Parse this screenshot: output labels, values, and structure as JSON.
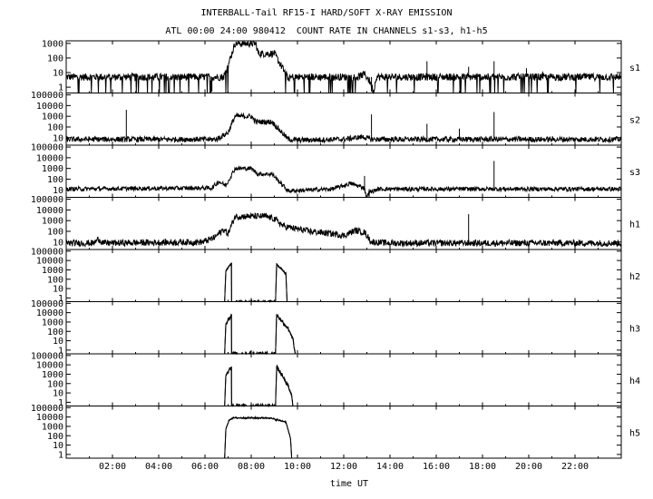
{
  "chart_data": {
    "type": "line",
    "title": "INTERBALL-Tail RF15-I HARD/SOFT X-RAY EMISSION",
    "subtitle": "ATL 00:00 24:00 980412  COUNT RATE IN CHANNELS s1-s3, h1-h5",
    "xlabel": "time UT",
    "xlim": [
      0,
      24
    ],
    "x_ticks": [
      2,
      4,
      6,
      8,
      10,
      12,
      14,
      16,
      18,
      20,
      22
    ],
    "x_tick_labels": [
      "02:00",
      "04:00",
      "06:00",
      "08:00",
      "10:00",
      "12:00",
      "14:00",
      "16:00",
      "18:00",
      "20:00",
      "22:00"
    ],
    "y_scale": "log",
    "grid": false,
    "panels": [
      {
        "name": "s1",
        "ylim": [
          0.4,
          1500
        ],
        "y_ticks": [
          1,
          10,
          100,
          1000
        ],
        "y_tick_labels": [
          "1",
          "10",
          "100",
          "1000"
        ],
        "baseline": 5,
        "noise_frac": 0.25,
        "dropouts": true,
        "points": [
          [
            0,
            5
          ],
          [
            6.8,
            5
          ],
          [
            7.0,
            30
          ],
          [
            7.3,
            1000
          ],
          [
            8.2,
            1000
          ],
          [
            8.3,
            200
          ],
          [
            9.0,
            200
          ],
          [
            9.6,
            4
          ],
          [
            9.8,
            5
          ],
          [
            12.6,
            5
          ],
          [
            12.9,
            8
          ],
          [
            13.1,
            3
          ],
          [
            13.3,
            0.5
          ],
          [
            13.4,
            5
          ],
          [
            24,
            5
          ]
        ],
        "spikes": [
          [
            15.6,
            60
          ],
          [
            17.4,
            25
          ],
          [
            18.5,
            60
          ],
          [
            19.9,
            20
          ],
          [
            20.6,
            12
          ]
        ],
        "deep_spikes": [
          [
            6.3,
            0.5
          ],
          [
            13.2,
            0.5
          ],
          [
            5.3,
            0.5
          ]
        ]
      },
      {
        "name": "s2",
        "ylim": [
          2,
          150000
        ],
        "y_ticks": [
          10,
          100,
          1000,
          10000,
          100000
        ],
        "y_tick_labels": [
          "10",
          "100",
          "1000",
          "10000",
          "100000"
        ],
        "baseline": 7,
        "noise_frac": 0.25,
        "dropouts": false,
        "points": [
          [
            0,
            7
          ],
          [
            6.5,
            7
          ],
          [
            7.0,
            30
          ],
          [
            7.3,
            1000
          ],
          [
            8.0,
            1000
          ],
          [
            8.2,
            300
          ],
          [
            8.9,
            300
          ],
          [
            9.6,
            7
          ],
          [
            10.0,
            6
          ],
          [
            12.0,
            7
          ],
          [
            12.8,
            12
          ],
          [
            13.2,
            7
          ],
          [
            15,
            7
          ],
          [
            24,
            7
          ]
        ],
        "spikes": [
          [
            2.6,
            4000
          ],
          [
            13.2,
            1500
          ],
          [
            15.6,
            200
          ],
          [
            17.0,
            70
          ],
          [
            18.5,
            2500
          ]
        ],
        "deep_spikes": []
      },
      {
        "name": "s3",
        "ylim": [
          2,
          150000
        ],
        "y_ticks": [
          10,
          100,
          1000,
          10000,
          100000
        ],
        "y_tick_labels": [
          "10",
          "100",
          "1000",
          "10000",
          "100000"
        ],
        "baseline": 12,
        "noise_frac": 0.2,
        "dropouts": false,
        "points": [
          [
            0,
            12
          ],
          [
            6.3,
            15
          ],
          [
            6.6,
            60
          ],
          [
            6.9,
            25
          ],
          [
            7.3,
            1000
          ],
          [
            8.0,
            1000
          ],
          [
            8.3,
            300
          ],
          [
            8.9,
            300
          ],
          [
            9.6,
            8
          ],
          [
            11.5,
            12
          ],
          [
            12.3,
            40
          ],
          [
            12.9,
            15
          ],
          [
            13.0,
            0.8
          ],
          [
            13.05,
            5
          ],
          [
            13.5,
            12
          ],
          [
            24,
            12
          ]
        ],
        "spikes": [
          [
            12.9,
            200
          ],
          [
            18.5,
            5000
          ]
        ],
        "deep_spikes": [
          [
            13.1,
            2
          ]
        ]
      },
      {
        "name": "h1",
        "ylim": [
          2,
          150000
        ],
        "y_ticks": [
          10,
          100,
          1000,
          10000,
          100000
        ],
        "y_tick_labels": [
          "10",
          "100",
          "1000",
          "10000",
          "100000"
        ],
        "baseline": 8,
        "noise_frac": 0.3,
        "dropouts": false,
        "points": [
          [
            0,
            8
          ],
          [
            1.2,
            8
          ],
          [
            1.4,
            20
          ],
          [
            1.6,
            8
          ],
          [
            5.9,
            10
          ],
          [
            6.4,
            25
          ],
          [
            6.8,
            150
          ],
          [
            7.0,
            60
          ],
          [
            7.3,
            2500
          ],
          [
            8.6,
            2500
          ],
          [
            9.0,
            1500
          ],
          [
            9.4,
            300
          ],
          [
            10.5,
            100
          ],
          [
            11.5,
            60
          ],
          [
            12.0,
            40
          ],
          [
            12.5,
            120
          ],
          [
            12.9,
            80
          ],
          [
            13.2,
            10
          ],
          [
            14,
            8
          ],
          [
            24,
            8
          ]
        ],
        "spikes": [
          [
            17.4,
            4000
          ]
        ],
        "deep_spikes": []
      },
      {
        "name": "h2",
        "ylim": [
          0.4,
          150000
        ],
        "y_ticks": [
          1,
          10,
          100,
          1000,
          10000,
          100000
        ],
        "y_tick_labels": [
          "1",
          "10",
          "100",
          "1000",
          "10000",
          "100000"
        ],
        "baseline": null,
        "noise_frac": 0.15,
        "dropouts": false,
        "points": [
          [
            6.85,
            0.4
          ],
          [
            6.9,
            600
          ],
          [
            7.05,
            3000
          ],
          [
            7.15,
            5000
          ],
          [
            7.15,
            0.4
          ],
          [
            9.05,
            0.4
          ],
          [
            9.1,
            4000
          ],
          [
            9.3,
            1200
          ],
          [
            9.5,
            400
          ],
          [
            9.55,
            0.4
          ]
        ],
        "spikes": [],
        "deep_spikes": []
      },
      {
        "name": "h3",
        "ylim": [
          0.4,
          150000
        ],
        "y_ticks": [
          1,
          10,
          100,
          1000,
          10000,
          100000
        ],
        "y_tick_labels": [
          "1",
          "10",
          "100",
          "1000",
          "10000",
          "100000"
        ],
        "baseline": null,
        "noise_frac": 0.25,
        "dropouts": false,
        "points": [
          [
            6.85,
            0.4
          ],
          [
            6.9,
            600
          ],
          [
            7.05,
            3000
          ],
          [
            7.15,
            5000
          ],
          [
            7.15,
            0.4
          ],
          [
            9.05,
            0.4
          ],
          [
            9.1,
            6000
          ],
          [
            9.3,
            1500
          ],
          [
            9.6,
            200
          ],
          [
            9.8,
            20
          ],
          [
            9.85,
            2
          ],
          [
            9.9,
            0.4
          ]
        ],
        "spikes": [],
        "deep_spikes": []
      },
      {
        "name": "h4",
        "ylim": [
          0.4,
          150000
        ],
        "y_ticks": [
          1,
          10,
          100,
          1000,
          10000,
          100000
        ],
        "y_tick_labels": [
          "1",
          "10",
          "100",
          "1000",
          "10000",
          "100000"
        ],
        "baseline": null,
        "noise_frac": 0.25,
        "dropouts": false,
        "points": [
          [
            6.85,
            0.4
          ],
          [
            6.9,
            600
          ],
          [
            7.05,
            3000
          ],
          [
            7.15,
            5000
          ],
          [
            7.15,
            0.4
          ],
          [
            9.05,
            0.4
          ],
          [
            9.1,
            6000
          ],
          [
            9.3,
            1000
          ],
          [
            9.6,
            50
          ],
          [
            9.75,
            5
          ],
          [
            9.8,
            0.4
          ]
        ],
        "spikes": [],
        "deep_spikes": []
      },
      {
        "name": "h5",
        "ylim": [
          0.4,
          150000
        ],
        "y_ticks": [
          1,
          10,
          100,
          1000,
          10000,
          100000
        ],
        "y_tick_labels": [
          "1",
          "10",
          "100",
          "1000",
          "10000",
          "100000"
        ],
        "baseline": null,
        "noise_frac": 0.1,
        "dropouts": false,
        "points": [
          [
            6.85,
            0.4
          ],
          [
            6.9,
            500
          ],
          [
            7.05,
            5000
          ],
          [
            7.2,
            8000
          ],
          [
            8.8,
            8000
          ],
          [
            9.1,
            5000
          ],
          [
            9.5,
            3000
          ],
          [
            9.7,
            50
          ],
          [
            9.75,
            0.4
          ]
        ],
        "spikes": [],
        "deep_spikes": []
      }
    ]
  }
}
